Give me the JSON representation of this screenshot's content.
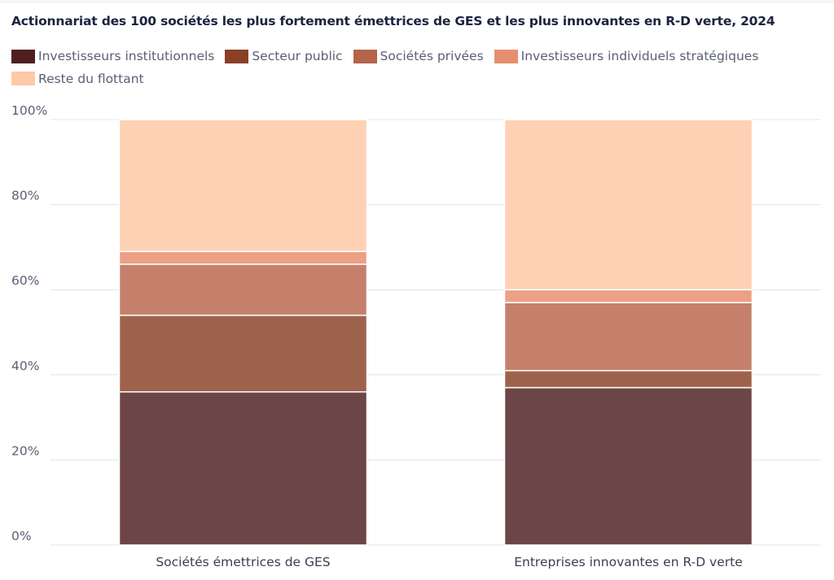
{
  "chart_data": {
    "type": "bar",
    "stacked": true,
    "title": "Actionnariat des 100 sociétés les plus fortement émettrices de GES et les plus innovantes en R-D verte, 2024",
    "xlabel": "",
    "ylabel": "",
    "ylim": [
      0,
      100
    ],
    "y_ticks": [
      "0%",
      "20%",
      "40%",
      "60%",
      "80%",
      "100%"
    ],
    "y_tick_values": [
      0,
      20,
      40,
      60,
      80,
      100
    ],
    "grid": true,
    "legend_position": "top-left",
    "categories": [
      "Sociétés émettrices de GES",
      "Entreprises innovantes en R-D verte"
    ],
    "series": [
      {
        "name": "Investisseurs institutionnels",
        "color": "#4f1f1f",
        "bar_color": "#6c4646",
        "values": [
          36,
          37
        ]
      },
      {
        "name": "Secteur public",
        "color": "#8b3f27",
        "bar_color": "#9e624c",
        "values": [
          18,
          4
        ]
      },
      {
        "name": "Sociétés privées",
        "color": "#b4644a",
        "bar_color": "#c4806a",
        "values": [
          12,
          16
        ]
      },
      {
        "name": "Investisseurs individuels stratégiques",
        "color": "#e78e6e",
        "bar_color": "#eca085",
        "values": [
          3,
          3
        ]
      },
      {
        "name": "Reste du flottant",
        "color": "#ffc8a8",
        "bar_color": "#fed1b4",
        "values": [
          31,
          40
        ]
      }
    ]
  }
}
